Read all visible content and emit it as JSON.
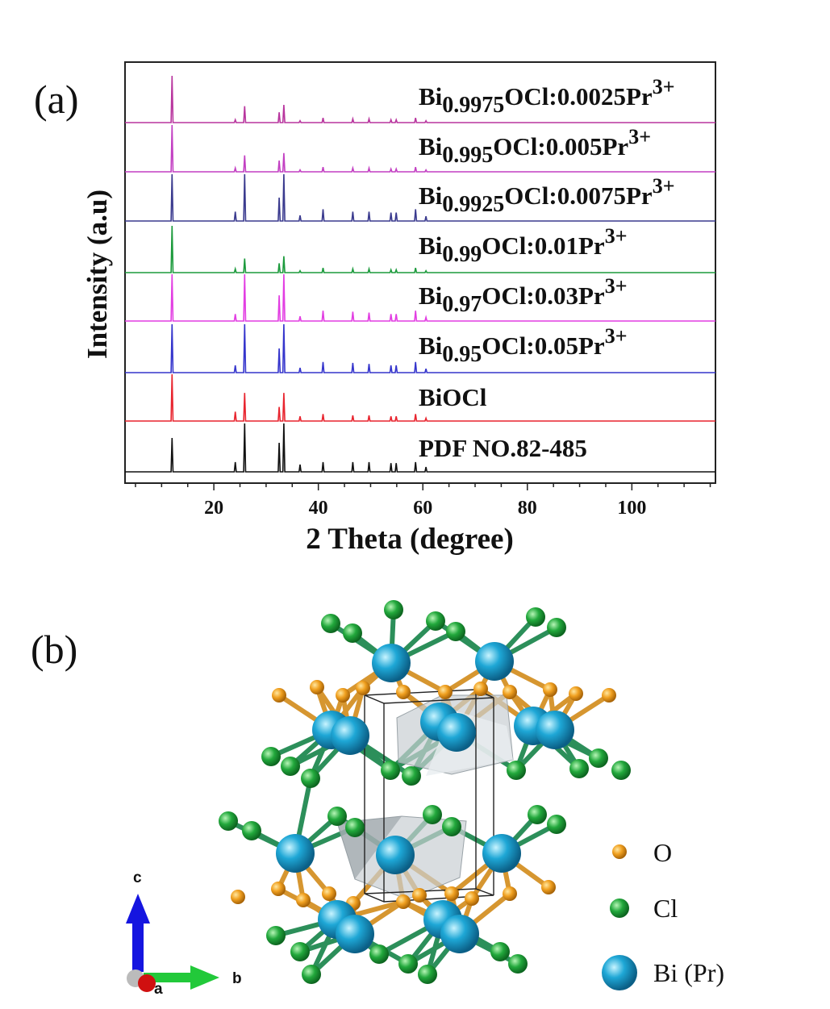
{
  "figure": {
    "panel_a_label": "(a)",
    "panel_b_label": "(b)"
  },
  "chart_data": {
    "type": "line",
    "xlabel": "2 Theta (degree)",
    "ylabel": "Intensity (a.u)",
    "xlim": [
      3,
      116
    ],
    "xticks": [
      20,
      40,
      60,
      80,
      100
    ],
    "grid": false,
    "legend": "labels-on-traces",
    "peaks_2theta": [
      12.0,
      24.1,
      25.9,
      32.5,
      33.4,
      36.5,
      40.9,
      46.6,
      49.7,
      53.9,
      54.9,
      58.6,
      60.6
    ],
    "series": [
      {
        "name": "Bi0.9975OCl:0.0025Pr3+",
        "base": "Bi",
        "sub": "0.9975",
        "mid": "OCl:0.0025Pr",
        "sup": "3+",
        "color": "#b8359e",
        "peak_heights": [
          1.0,
          0.06,
          0.35,
          0.22,
          0.38,
          0.04,
          0.1,
          0.08,
          0.08,
          0.06,
          0.06,
          0.1,
          0.04
        ]
      },
      {
        "name": "Bi0.995OCl:0.005Pr3+",
        "base": "Bi",
        "sub": "0.995",
        "mid": "OCl:0.005Pr",
        "sup": "3+",
        "color": "#c23fc2",
        "peak_heights": [
          1.0,
          0.08,
          0.35,
          0.24,
          0.4,
          0.04,
          0.1,
          0.08,
          0.08,
          0.06,
          0.06,
          0.1,
          0.04
        ]
      },
      {
        "name": "Bi0.9925OCl:0.0075Pr3+",
        "base": "Bi",
        "sub": "0.9925",
        "mid": "OCl:0.0075Pr",
        "sup": "3+",
        "color": "#3a3a8e",
        "peak_heights": [
          1.0,
          0.2,
          1.0,
          0.5,
          1.0,
          0.12,
          0.25,
          0.2,
          0.2,
          0.18,
          0.18,
          0.25,
          0.1
        ]
      },
      {
        "name": "Bi0.99OCl:0.01Pr3+",
        "base": "Bi",
        "sub": "0.99",
        "mid": "OCl:0.01Pr",
        "sup": "3+",
        "color": "#1c9a3c",
        "peak_heights": [
          1.0,
          0.08,
          0.3,
          0.2,
          0.35,
          0.04,
          0.1,
          0.08,
          0.08,
          0.06,
          0.06,
          0.1,
          0.04
        ]
      },
      {
        "name": "Bi0.97OCl:0.03Pr3+",
        "base": "Bi",
        "sub": "0.97",
        "mid": "OCl:0.03Pr",
        "sup": "3+",
        "color": "#e23de2",
        "peak_heights": [
          1.0,
          0.15,
          1.0,
          0.55,
          1.0,
          0.1,
          0.22,
          0.2,
          0.18,
          0.15,
          0.15,
          0.22,
          0.08
        ]
      },
      {
        "name": "Bi0.95OCl:0.05Pr3+",
        "base": "Bi",
        "sub": "0.95",
        "mid": "OCl:0.05Pr",
        "sup": "3+",
        "color": "#3535cc",
        "peak_heights": [
          1.0,
          0.15,
          1.0,
          0.5,
          1.0,
          0.1,
          0.22,
          0.2,
          0.18,
          0.15,
          0.15,
          0.22,
          0.08
        ]
      },
      {
        "name": "BiOCl",
        "base": "BiOCl",
        "sub": "",
        "mid": "",
        "sup": "",
        "color": "#e8242e",
        "peak_heights": [
          1.0,
          0.2,
          0.6,
          0.3,
          0.6,
          0.1,
          0.15,
          0.12,
          0.12,
          0.1,
          0.1,
          0.15,
          0.06
        ]
      },
      {
        "name": "PDF NO.82-485",
        "base": "PDF NO.82-485",
        "sub": "",
        "mid": "",
        "sup": "",
        "color": "#111111",
        "peak_heights": [
          0.7,
          0.2,
          1.0,
          0.6,
          1.0,
          0.15,
          0.2,
          0.2,
          0.2,
          0.18,
          0.18,
          0.2,
          0.1
        ]
      }
    ]
  },
  "structure": {
    "axes": {
      "c": "c",
      "b": "b",
      "a": "a"
    },
    "legend": [
      {
        "label": "O",
        "color": "#f0a020"
      },
      {
        "label": "Cl",
        "color": "#1fa53a"
      },
      {
        "label": "Bi (Pr)",
        "color": "#1c9ccc"
      }
    ]
  }
}
